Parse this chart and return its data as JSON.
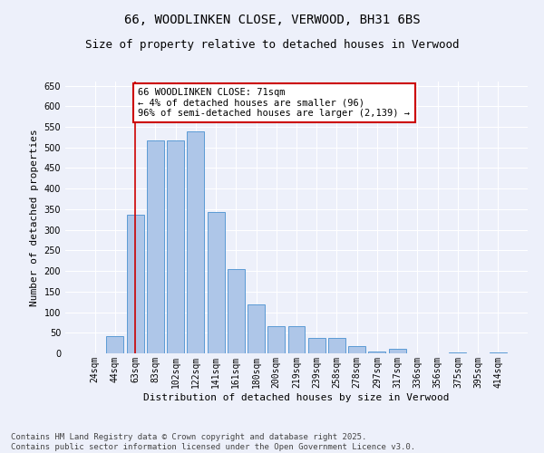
{
  "title": "66, WOODLINKEN CLOSE, VERWOOD, BH31 6BS",
  "subtitle": "Size of property relative to detached houses in Verwood",
  "xlabel": "Distribution of detached houses by size in Verwood",
  "ylabel": "Number of detached properties",
  "categories": [
    "24sqm",
    "44sqm",
    "63sqm",
    "83sqm",
    "102sqm",
    "122sqm",
    "141sqm",
    "161sqm",
    "180sqm",
    "200sqm",
    "219sqm",
    "239sqm",
    "258sqm",
    "278sqm",
    "297sqm",
    "317sqm",
    "336sqm",
    "356sqm",
    "375sqm",
    "395sqm",
    "414sqm"
  ],
  "values": [
    0,
    42,
    337,
    518,
    518,
    538,
    344,
    205,
    118,
    67,
    67,
    38,
    38,
    18,
    5,
    10,
    0,
    0,
    3,
    0,
    3
  ],
  "bar_color": "#aec6e8",
  "bar_edge_color": "#5b9bd5",
  "vline_x": 2.0,
  "vline_color": "#cc0000",
  "annotation_text": "66 WOODLINKEN CLOSE: 71sqm\n← 4% of detached houses are smaller (96)\n96% of semi-detached houses are larger (2,139) →",
  "annotation_box_color": "#ffffff",
  "annotation_box_edge_color": "#cc0000",
  "ylim": [
    0,
    660
  ],
  "yticks": [
    0,
    50,
    100,
    150,
    200,
    250,
    300,
    350,
    400,
    450,
    500,
    550,
    600,
    650
  ],
  "background_color": "#edf0fa",
  "footer_line1": "Contains HM Land Registry data © Crown copyright and database right 2025.",
  "footer_line2": "Contains public sector information licensed under the Open Government Licence v3.0.",
  "title_fontsize": 10,
  "subtitle_fontsize": 9,
  "label_fontsize": 8,
  "tick_fontsize": 7,
  "annotation_fontsize": 7.5,
  "footer_fontsize": 6.5
}
